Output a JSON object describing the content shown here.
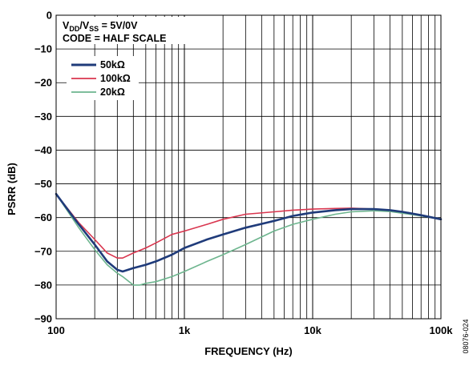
{
  "chart_data": {
    "type": "line",
    "title": "",
    "xlabel": "FREQUENCY (Hz)",
    "ylabel": "PSRR (dB)",
    "xscale": "log",
    "xlim": [
      100,
      100000
    ],
    "ylim": [
      -90,
      0
    ],
    "grid": true,
    "y_ticks": [
      0,
      -10,
      -20,
      -30,
      -40,
      -50,
      -60,
      -70,
      -80,
      -90
    ],
    "x_tick_labels": [
      {
        "value": 100,
        "label": "100"
      },
      {
        "value": 1000,
        "label": "1k"
      },
      {
        "value": 10000,
        "label": "10k"
      },
      {
        "value": 100000,
        "label": "100k"
      }
    ],
    "annotations": {
      "supply_main": "V",
      "supply_sub1": "DD",
      "supply_mid": "/V",
      "supply_sub2": "SS",
      "supply_end": " = 5V/0V",
      "code": "CODE = HALF SCALE"
    },
    "legend_position": "top-left",
    "figure_id": "08076-024",
    "series": [
      {
        "name": "50kΩ",
        "color": "#1f3b7a",
        "x": [
          100,
          150,
          200,
          250,
          300,
          330,
          400,
          500,
          600,
          800,
          1000,
          1500,
          2000,
          3000,
          5000,
          7000,
          10000,
          15000,
          20000,
          30000,
          40000,
          50000,
          70000,
          100000
        ],
        "y": [
          -53,
          -62,
          -68,
          -73,
          -75.5,
          -76,
          -75,
          -74,
          -73,
          -71,
          -69,
          -66.5,
          -65,
          -63,
          -61,
          -59.5,
          -58.5,
          -57.8,
          -57.5,
          -57.5,
          -57.8,
          -58.3,
          -59.3,
          -60.5
        ]
      },
      {
        "name": "100kΩ",
        "color": "#d9364f",
        "x": [
          100,
          150,
          200,
          250,
          300,
          330,
          400,
          500,
          600,
          800,
          1000,
          1500,
          2000,
          3000,
          5000,
          7000,
          10000,
          15000,
          20000,
          30000,
          40000,
          50000,
          70000,
          100000
        ],
        "y": [
          -53,
          -61.5,
          -66.5,
          -70.5,
          -72,
          -72,
          -70.5,
          -69,
          -67.5,
          -65,
          -64,
          -62,
          -60.5,
          -59,
          -58.3,
          -57.8,
          -57.5,
          -57.3,
          -57.2,
          -57.5,
          -57.8,
          -58.3,
          -59.3,
          -60.5
        ]
      },
      {
        "name": "20kΩ",
        "color": "#6db58e",
        "x": [
          100,
          150,
          200,
          250,
          300,
          330,
          400,
          450,
          500,
          600,
          800,
          1000,
          1500,
          2000,
          3000,
          5000,
          7000,
          10000,
          15000,
          20000,
          30000,
          40000,
          50000,
          70000,
          100000
        ],
        "y": [
          -53,
          -63,
          -69.5,
          -74,
          -76.5,
          -77.5,
          -80,
          -80,
          -79.5,
          -79,
          -77.5,
          -76,
          -73,
          -71,
          -68,
          -64,
          -62,
          -60.5,
          -59,
          -58.3,
          -58,
          -58.2,
          -58.7,
          -59.5,
          -60.5
        ]
      }
    ]
  }
}
